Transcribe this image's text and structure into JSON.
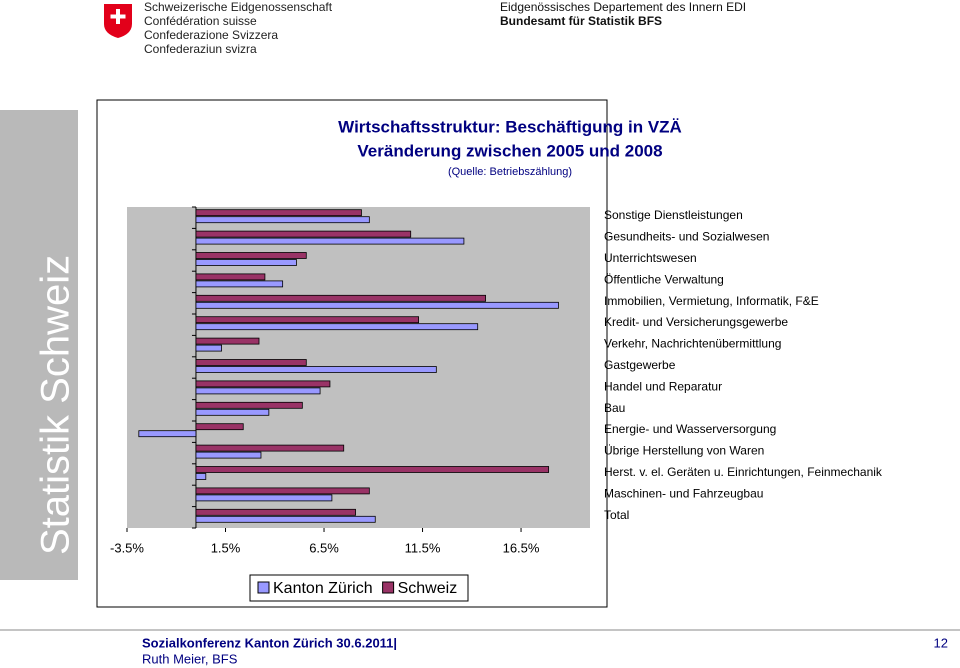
{
  "header": {
    "org_lines": [
      "Schweizerische Eidgenossenschaft",
      "Confédération suisse",
      "Confederazione Svizzera",
      "Confederaziun svizra"
    ],
    "department": "Eidgenössisches Departement des Innern EDI",
    "office": "Bundesamt für Statistik BFS",
    "banner": "Statistik Schweiz"
  },
  "chart_data": {
    "type": "bar",
    "orientation": "horizontal",
    "title": "Wirtschaftsstruktur: Beschäftigung in VZÄ",
    "subtitle": "Veränderung zwischen 2005 und 2008",
    "source": "(Quelle: Betriebszählung)",
    "categories": [
      "Sonstige Dienstleistungen",
      "Gesundheits- und Sozialwesen",
      "Unterrichtswesen",
      "Öffentliche Verwaltung",
      "Immobilien, Vermietung, Informatik, F&E",
      "Kredit- und Versicherungsgewerbe",
      "Verkehr, Nachrichtenübermittlung",
      "Gastgewerbe",
      "Handel und Reparatur",
      "Bau",
      "Energie- und Wasserversorgung",
      "Übrige Herstellung von Waren",
      "Herst. v. el. Geräten u. Einrichtungen, Feinmechanik",
      "Maschinen- und Fahrzeugbau",
      "Total"
    ],
    "series": [
      {
        "name": "Kanton Zürich",
        "color": "#9999ff",
        "values": [
          8.8,
          13.6,
          5.1,
          4.4,
          18.4,
          14.3,
          1.3,
          12.2,
          6.3,
          3.7,
          -2.9,
          3.3,
          0.5,
          6.9,
          9.1
        ]
      },
      {
        "name": "Schweiz",
        "color": "#993366",
        "values": [
          8.4,
          10.9,
          5.6,
          3.5,
          14.7,
          11.3,
          3.2,
          5.6,
          6.8,
          5.4,
          2.4,
          7.5,
          17.9,
          8.8,
          8.1
        ]
      }
    ],
    "xlim": [
      -3.5,
      20
    ],
    "xticks": [
      {
        "value": -3.5,
        "label": "-3.5%"
      },
      {
        "value": 1.5,
        "label": "1.5%"
      },
      {
        "value": 6.5,
        "label": "6.5%"
      },
      {
        "value": 11.5,
        "label": "11.5%"
      },
      {
        "value": 16.5,
        "label": "16.5%"
      }
    ],
    "legend": "bottom"
  },
  "footer": {
    "event": "Sozialkonferenz Kanton Zürich 30.6.2011|",
    "author": "Ruth Meier, BFS",
    "page": "12"
  }
}
